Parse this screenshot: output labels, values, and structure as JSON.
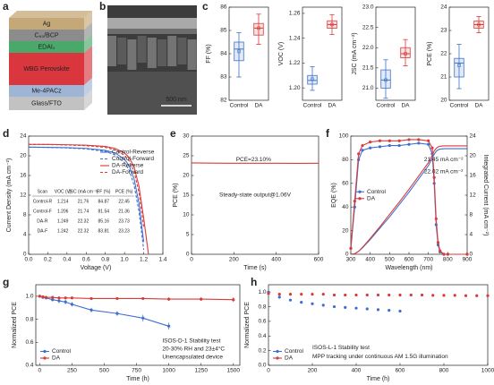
{
  "chart_data": [
    {
      "type": "stack",
      "label": "a",
      "layers": [
        {
          "name": "Ag",
          "color": "#c4a877"
        },
        {
          "name": "C₆₀/BCP",
          "color": "#8c8c8c"
        },
        {
          "name": "EDAI₂",
          "color": "#4aa86a"
        },
        {
          "name": "WBG Perovskite",
          "color": "#d9363e"
        },
        {
          "name": "Me-4PACz",
          "color": "#9fb5d6"
        },
        {
          "name": "Glass/FTO",
          "color": "#c2c2c2"
        }
      ]
    },
    {
      "type": "image",
      "label": "b",
      "scale_bar": "500 nm"
    },
    {
      "type": "box",
      "label": "c",
      "ylabel": "FF (%)",
      "categories": [
        "Control",
        "DA"
      ],
      "colors": [
        "#3d74c8",
        "#d93a3a"
      ],
      "ylim": [
        82,
        86
      ],
      "yticks": [
        82,
        83,
        84,
        85,
        86
      ],
      "boxes": [
        {
          "min": 83.0,
          "q1": 83.7,
          "median": 84.2,
          "q3": 84.5,
          "max": 84.9,
          "mean": 84.1
        },
        {
          "min": 84.4,
          "q1": 84.8,
          "median": 85.1,
          "q3": 85.3,
          "max": 85.7,
          "mean": 85.1
        }
      ]
    },
    {
      "type": "box",
      "ylabel": "VOC (V)",
      "categories": [
        "Control",
        "DA"
      ],
      "colors": [
        "#3d74c8",
        "#d93a3a"
      ],
      "ylim": [
        1.19,
        1.265
      ],
      "yticks": [
        {
          "value": 1.2,
          "label": "1.20"
        },
        1.22,
        1.24,
        1.26
      ],
      "boxes": [
        {
          "min": 1.198,
          "q1": 1.203,
          "median": 1.206,
          "q3": 1.21,
          "max": 1.217,
          "mean": 1.207
        },
        {
          "min": 1.243,
          "q1": 1.248,
          "median": 1.251,
          "q3": 1.254,
          "max": 1.259,
          "mean": 1.251
        }
      ]
    },
    {
      "type": "box",
      "ylabel": "JSC (mA cm⁻²)",
      "categories": [
        "Control",
        "DA"
      ],
      "colors": [
        "#3d74c8",
        "#d93a3a"
      ],
      "ylim": [
        20.7,
        23.0
      ],
      "yticks": [
        {
          "value": 21,
          "label": "21.0"
        },
        21.5,
        {
          "value": 22,
          "label": "22.0"
        },
        22.5,
        {
          "value": 23,
          "label": "23.0"
        }
      ],
      "boxes": [
        {
          "min": 20.75,
          "q1": 21.0,
          "median": 21.2,
          "q3": 21.45,
          "max": 21.7,
          "mean": 21.2
        },
        {
          "min": 21.55,
          "q1": 21.75,
          "median": 21.85,
          "q3": 22.0,
          "max": 22.2,
          "mean": 21.85
        }
      ]
    },
    {
      "type": "box",
      "ylabel": "PCE (%)",
      "categories": [
        "Control",
        "DA"
      ],
      "colors": [
        "#3d74c8",
        "#d93a3a"
      ],
      "ylim": [
        20,
        24
      ],
      "yticks": [
        20,
        21,
        22,
        23,
        24
      ],
      "boxes": [
        {
          "min": 20.5,
          "q1": 21.0,
          "median": 21.6,
          "q3": 21.8,
          "max": 22.4,
          "mean": 21.5
        },
        {
          "min": 22.9,
          "q1": 23.1,
          "median": 23.25,
          "q3": 23.4,
          "max": 23.6,
          "mean": 23.25
        }
      ]
    },
    {
      "type": "line",
      "label": "d",
      "xlabel": "Voltage (V)",
      "ylabel": "Current Density (mA cm⁻²)",
      "xlim": [
        0,
        1.4
      ],
      "xticks": [
        {
          "value": 0,
          "label": "0.0"
        },
        0.2,
        0.4,
        0.6,
        0.8,
        {
          "value": 1,
          "label": "1.0"
        },
        1.2,
        1.4
      ],
      "ylim": [
        0,
        24
      ],
      "yticks": [
        0,
        4,
        8,
        12,
        16,
        20,
        24
      ],
      "legend": "upper right",
      "x": [
        0,
        0.2,
        0.4,
        0.6,
        0.8,
        0.9,
        1.0,
        1.05,
        1.1,
        1.15,
        1.2,
        1.25
      ],
      "series": [
        {
          "name": "Control-Reverse",
          "color": "#3d6fd0",
          "values": [
            21.76,
            21.72,
            21.65,
            21.5,
            21.1,
            20.6,
            19.3,
            17.9,
            15.3,
            10.4,
            2.5,
            null
          ]
        },
        {
          "name": "Control-Forward",
          "color": "#3d6fd0",
          "dashed": true,
          "values": [
            21.74,
            21.7,
            21.6,
            21.4,
            20.9,
            20.2,
            18.6,
            17.0,
            14.0,
            8.8,
            0.9,
            null
          ]
        },
        {
          "name": "DA-Reverse",
          "color": "#d93a3a",
          "values": [
            22.32,
            22.3,
            22.25,
            22.15,
            21.9,
            21.5,
            20.6,
            19.6,
            17.7,
            13.9,
            7.3,
            0
          ]
        },
        {
          "name": "DA-Forward",
          "color": "#d93a3a",
          "dashed": true,
          "values": [
            22.32,
            22.28,
            22.2,
            22.05,
            21.7,
            21.2,
            20.1,
            18.9,
            16.8,
            12.6,
            5.5,
            null
          ]
        }
      ],
      "table": {
        "columns": [
          "Scan",
          "VOC (V)",
          "JSC (mA cm⁻²)",
          "FF (%)",
          "PCE (%)"
        ],
        "rows": [
          [
            "Control-R",
            "1.214",
            "21.76",
            "84.87",
            "22.45"
          ],
          [
            "Control-F",
            "1.206",
            "21.74",
            "81.54",
            "21.36"
          ],
          [
            "DA-R",
            "1.249",
            "22.32",
            "85.16",
            "23.73"
          ],
          [
            "DA-F",
            "1.242",
            "22.32",
            "83.81",
            "23.23"
          ]
        ]
      }
    },
    {
      "type": "line",
      "label": "e",
      "xlabel": "Time (s)",
      "ylabel": "PCE (%)",
      "xlim": [
        0,
        600
      ],
      "xticks": [
        0,
        200,
        400,
        600
      ],
      "ylim": [
        0,
        30
      ],
      "yticks": [
        0,
        5,
        10,
        15,
        20,
        25,
        30
      ],
      "x": [
        0,
        100,
        200,
        300,
        400,
        500,
        600
      ],
      "series": [
        {
          "color": "#d93a3a",
          "values": [
            23.2,
            23.15,
            23.1,
            23.1,
            23.1,
            23.08,
            23.1
          ]
        }
      ],
      "annotations": [
        {
          "text": "PCE=23.10%",
          "color": "#d93a3a"
        },
        {
          "text": "Steady-state output@1.06V",
          "color": "#222222"
        }
      ]
    },
    {
      "type": "line",
      "label": "f",
      "xlabel": "Wavelength (nm)",
      "ylabel": "EQE (%)",
      "y2label": "Integrated Current (mA cm⁻²)",
      "xlim": [
        300,
        900
      ],
      "xticks": [
        300,
        400,
        500,
        600,
        700,
        800,
        900
      ],
      "ylim": [
        0,
        100
      ],
      "yticks": [
        0,
        20,
        40,
        60,
        80,
        100
      ],
      "y2lim": [
        0,
        24
      ],
      "y2ticks": [
        0,
        4,
        8,
        12,
        16,
        20,
        24
      ],
      "legend": "center left",
      "x": [
        300,
        320,
        340,
        360,
        400,
        450,
        500,
        550,
        600,
        650,
        700,
        720,
        730,
        740,
        750,
        760,
        780,
        800,
        900
      ],
      "series": [
        {
          "name": "Control",
          "color": "#3d6fd0",
          "markers": true,
          "values": [
            5,
            40,
            80,
            88,
            90,
            91,
            92,
            92,
            93,
            94,
            93,
            85,
            60,
            25,
            8,
            2,
            0,
            0,
            0
          ]
        },
        {
          "name": "DA",
          "color": "#d93a3a",
          "markers": true,
          "values": [
            5,
            45,
            85,
            92,
            95,
            96,
            96,
            96,
            97,
            97,
            96,
            90,
            65,
            30,
            10,
            3,
            0,
            0,
            0
          ]
        },
        {
          "color": "#3d6fd0",
          "axis": "y2",
          "values": [
            0,
            0.1,
            0.6,
            1.3,
            3.0,
            5.3,
            7.6,
            10.1,
            12.6,
            15.3,
            18.0,
            19.5,
            20.3,
            20.9,
            21.2,
            21.35,
            21.45,
            21.45,
            21.45
          ]
        },
        {
          "color": "#d93a3a",
          "axis": "y2",
          "values": [
            0,
            0.1,
            0.6,
            1.4,
            3.2,
            5.6,
            8.1,
            10.6,
            13.2,
            15.9,
            18.6,
            20.1,
            21.0,
            21.5,
            21.8,
            21.95,
            22.02,
            22.02,
            22.02
          ]
        }
      ],
      "annotations": [
        {
          "text": "21.45 mA cm⁻²",
          "color": "#3d6fd0"
        },
        {
          "text": "22.02 mA cm⁻²",
          "color": "#d93a3a"
        }
      ]
    },
    {
      "type": "line",
      "label": "g",
      "xlabel": "Time (h)",
      "ylabel": "Normalized PCE",
      "xlim": [
        -30,
        1550
      ],
      "xticks": [
        0,
        250,
        500,
        750,
        1000,
        1250,
        1500
      ],
      "ylim": [
        0.4,
        1.1
      ],
      "yticks": [
        0.4,
        0.6,
        0.8,
        {
          "value": 1,
          "label": "1.0"
        }
      ],
      "legend": "lower left",
      "series": [
        {
          "name": "Control",
          "color": "#3d6fd0",
          "markers": true,
          "x": [
            0,
            25,
            50,
            100,
            150,
            200,
            250,
            400,
            600,
            800,
            1000
          ],
          "values": [
            1.0,
            0.99,
            0.985,
            0.97,
            0.96,
            0.95,
            0.93,
            0.88,
            0.85,
            0.81,
            0.74
          ],
          "errors": [
            0.01,
            0.01,
            0.01,
            0.015,
            0.02,
            0.02,
            0.02,
            0.02,
            0.02,
            0.03,
            0.03
          ]
        },
        {
          "name": "DA",
          "color": "#d93a3a",
          "markers": true,
          "x": [
            0,
            25,
            50,
            100,
            150,
            200,
            250,
            400,
            600,
            800,
            1000,
            1250,
            1500
          ],
          "values": [
            1.0,
            0.995,
            0.99,
            0.99,
            0.985,
            0.985,
            0.985,
            0.98,
            0.98,
            0.98,
            0.975,
            0.975,
            0.97
          ],
          "errors": [
            0.01,
            0.01,
            0.01,
            0.01,
            0.01,
            0.01,
            0.01,
            0.01,
            0.01,
            0.01,
            0.015,
            0.015,
            0.02
          ]
        }
      ],
      "annotations": [
        {
          "text": "ISOS-D-1 Stability test",
          "color": "#222222"
        },
        {
          "text": "20-30% RH and 23±4°C",
          "color": "#222222"
        },
        {
          "text": "Unencapsulated device",
          "color": "#222222"
        }
      ]
    },
    {
      "type": "line",
      "label": "h",
      "xlabel": "Time (h)",
      "ylabel": "Normalized PCE",
      "xlim": [
        0,
        1000
      ],
      "xticks": [
        0,
        200,
        400,
        600,
        800,
        1000
      ],
      "ylim": [
        0,
        1.1
      ],
      "yticks": [
        {
          "value": 0,
          "label": "0.0"
        },
        0.2,
        0.4,
        0.6,
        0.8,
        {
          "value": 1,
          "label": "1.0"
        }
      ],
      "legend": "lower left",
      "series": [
        {
          "name": "Control",
          "color": "#3d6fd0",
          "markers": true,
          "line": false,
          "x": [
            0,
            50,
            100,
            150,
            200,
            250,
            300,
            350,
            400,
            450,
            500,
            550,
            600
          ],
          "values": [
            1.0,
            0.93,
            0.89,
            0.86,
            0.84,
            0.82,
            0.8,
            0.79,
            0.78,
            0.77,
            0.76,
            0.75,
            0.74
          ]
        },
        {
          "name": "DA",
          "color": "#d93a3a",
          "markers": true,
          "line": false,
          "x": [
            0,
            50,
            100,
            150,
            200,
            250,
            300,
            350,
            400,
            450,
            500,
            550,
            600,
            650,
            700,
            750,
            800,
            850,
            900,
            950,
            1000
          ],
          "values": [
            0.98,
            0.97,
            0.97,
            0.97,
            0.97,
            0.97,
            0.96,
            0.96,
            0.96,
            0.96,
            0.96,
            0.96,
            0.96,
            0.96,
            0.96,
            0.955,
            0.955,
            0.955,
            0.95,
            0.95,
            0.95
          ]
        }
      ],
      "annotations": [
        {
          "text": "ISOS-L-1 Stability test",
          "color": "#222222"
        },
        {
          "text": "MPP tracking under continuous AM 1.5G illumination",
          "color": "#222222"
        }
      ]
    }
  ]
}
